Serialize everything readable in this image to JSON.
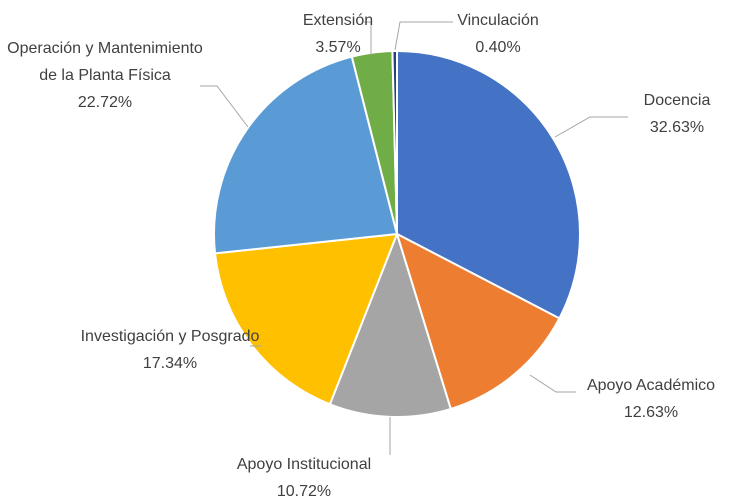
{
  "chart_data": {
    "type": "pie",
    "categories": [
      "Docencia",
      "Apoyo Académico",
      "Apoyo Institucional",
      "Investigación y Posgrado",
      "Operación y Mantenimiento de la Planta Física",
      "Extensión",
      "Vinculación"
    ],
    "values": [
      32.63,
      12.63,
      10.72,
      17.34,
      22.72,
      3.57,
      0.4
    ],
    "value_labels": [
      "32.63%",
      "12.63%",
      "10.72%",
      "17.34%",
      "22.72%",
      "3.57%",
      "0.40%"
    ],
    "colors": [
      "#4472c4",
      "#ed7d31",
      "#a5a5a5",
      "#ffc000",
      "#5b9bd5",
      "#70ad47",
      "#264478"
    ]
  }
}
